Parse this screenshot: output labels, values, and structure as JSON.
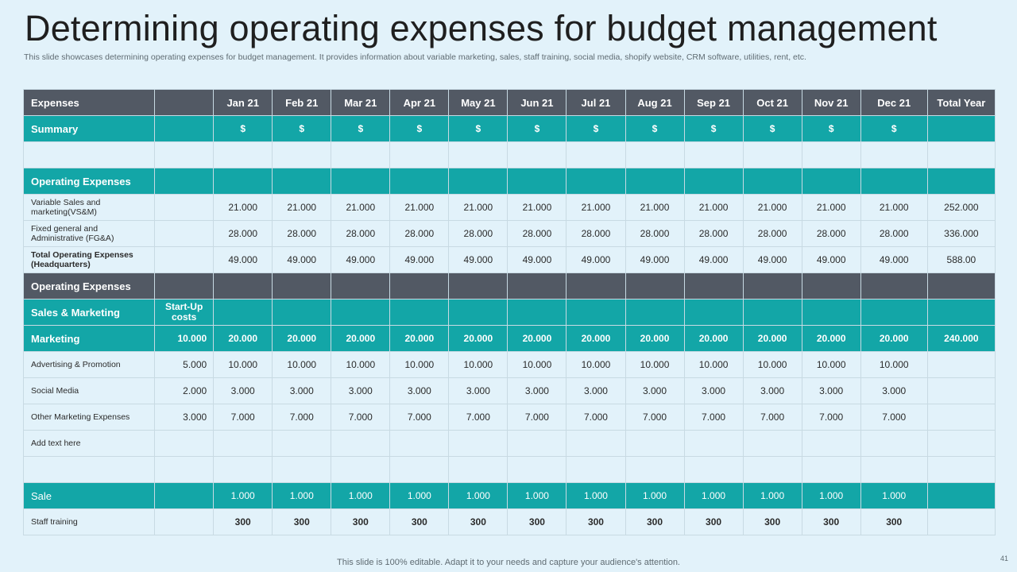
{
  "title": "Determining operating expenses for budget management",
  "subtitle": "This slide showcases determining operating expenses for budget management. It provides information about variable marketing, sales, staff training, social media, shopify website, CRM software, utilities, rent, etc.",
  "table": {
    "header": {
      "label": "Expenses",
      "months": [
        "Jan 21",
        "Feb 21",
        "Mar 21",
        "Apr 21",
        "May 21",
        "Jun 21",
        "Jul 21",
        "Aug 21",
        "Sep 21",
        "Oct 21",
        "Nov 21",
        "Dec 21"
      ],
      "total": "Total Year"
    },
    "summary": {
      "label": "Summary",
      "months": [
        "$",
        "$",
        "$",
        "$",
        "$",
        "$",
        "$",
        "$",
        "$",
        "$",
        "$",
        "$"
      ]
    },
    "operating_section": {
      "label": "Operating Expenses"
    },
    "variable_sales": {
      "label": "Variable Sales and marketing(VS&M)",
      "months": [
        "21.000",
        "21.000",
        "21.000",
        "21.000",
        "21.000",
        "21.000",
        "21.000",
        "21.000",
        "21.000",
        "21.000",
        "21.000",
        "21.000"
      ],
      "total": "252.000"
    },
    "fixed_general": {
      "label": "Fixed general and Administrative (FG&A)",
      "months": [
        "28.000",
        "28.000",
        "28.000",
        "28.000",
        "28.000",
        "28.000",
        "28.000",
        "28.000",
        "28.000",
        "28.000",
        "28.000",
        "28.000"
      ],
      "total": "336.000"
    },
    "total_operating": {
      "label": "Total Operating Expenses (Headquarters)",
      "months": [
        "49.000",
        "49.000",
        "49.000",
        "49.000",
        "49.000",
        "49.000",
        "49.000",
        "49.000",
        "49.000",
        "49.000",
        "49.000",
        "49.000"
      ],
      "total": "588.00"
    },
    "operating_header2": {
      "label": "Operating Expenses"
    },
    "sales_marketing": {
      "label": "Sales & Marketing",
      "startup": "Start-Up costs"
    },
    "marketing": {
      "label": "Marketing",
      "startup": "10.000",
      "months": [
        "20.000",
        "20.000",
        "20.000",
        "20.000",
        "20.000",
        "20.000",
        "20.000",
        "20.000",
        "20.000",
        "20.000",
        "20.000",
        "20.000"
      ],
      "total": "240.000"
    },
    "advertising": {
      "label": "Advertising & Promotion",
      "startup": "5.000",
      "months": [
        "10.000",
        "10.000",
        "10.000",
        "10.000",
        "10.000",
        "10.000",
        "10.000",
        "10.000",
        "10.000",
        "10.000",
        "10.000",
        "10.000"
      ]
    },
    "social_media": {
      "label": "Social Media",
      "startup": "2.000",
      "months": [
        "3.000",
        "3.000",
        "3.000",
        "3.000",
        "3.000",
        "3.000",
        "3.000",
        "3.000",
        "3.000",
        "3.000",
        "3.000",
        "3.000"
      ]
    },
    "other_marketing": {
      "label": "Other Marketing Expenses",
      "startup": "3.000",
      "months": [
        "7.000",
        "7.000",
        "7.000",
        "7.000",
        "7.000",
        "7.000",
        "7.000",
        "7.000",
        "7.000",
        "7.000",
        "7.000",
        "7.000"
      ]
    },
    "add_text": {
      "label": "Add text here"
    },
    "sale": {
      "label": "Sale",
      "months": [
        "1.000",
        "1.000",
        "1.000",
        "1.000",
        "1.000",
        "1.000",
        "1.000",
        "1.000",
        "1.000",
        "1.000",
        "1.000",
        "1.000"
      ]
    },
    "staff_training": {
      "label": "Staff training",
      "months": [
        "300",
        "300",
        "300",
        "300",
        "300",
        "300",
        "300",
        "300",
        "300",
        "300",
        "300",
        "300"
      ]
    }
  },
  "footer": "This slide is 100% editable. Adapt it to your needs and capture your audience's attention.",
  "page_number": "41"
}
